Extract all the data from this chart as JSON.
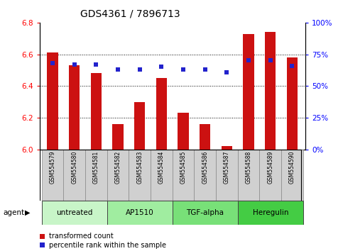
{
  "title": "GDS4361 / 7896713",
  "samples": [
    "GSM554579",
    "GSM554580",
    "GSM554581",
    "GSM554582",
    "GSM554583",
    "GSM554584",
    "GSM554585",
    "GSM554586",
    "GSM554587",
    "GSM554588",
    "GSM554589",
    "GSM554590"
  ],
  "bar_values": [
    6.61,
    6.53,
    6.48,
    6.16,
    6.3,
    6.45,
    6.23,
    6.16,
    6.02,
    6.73,
    6.74,
    6.58
  ],
  "dot_percentiles": [
    68,
    67,
    67,
    63,
    63,
    65,
    63,
    63,
    61,
    70,
    70,
    66
  ],
  "ylim_left": [
    6.0,
    6.8
  ],
  "ylim_right": [
    0,
    100
  ],
  "yticks_left": [
    6.0,
    6.2,
    6.4,
    6.6,
    6.8
  ],
  "yticks_right": [
    0,
    25,
    50,
    75,
    100
  ],
  "ytick_labels_right": [
    "0%",
    "25%",
    "50%",
    "75%",
    "100%"
  ],
  "bar_color": "#cc1111",
  "dot_color": "#2222cc",
  "bar_bottom": 6.0,
  "agents": [
    {
      "label": "untreated",
      "indices": [
        0,
        1,
        2
      ],
      "color": "#c8f5c8"
    },
    {
      "label": "AP1510",
      "indices": [
        3,
        4,
        5
      ],
      "color": "#a0eda0"
    },
    {
      "label": "TGF-alpha",
      "indices": [
        6,
        7,
        8
      ],
      "color": "#78e078"
    },
    {
      "label": "Heregulin",
      "indices": [
        9,
        10,
        11
      ],
      "color": "#44cc44"
    }
  ],
  "legend_items": [
    {
      "label": "transformed count",
      "color": "#cc1111"
    },
    {
      "label": "percentile rank within the sample",
      "color": "#2222cc"
    }
  ],
  "grid_lines": [
    6.2,
    6.4,
    6.6
  ],
  "bar_width": 0.5
}
